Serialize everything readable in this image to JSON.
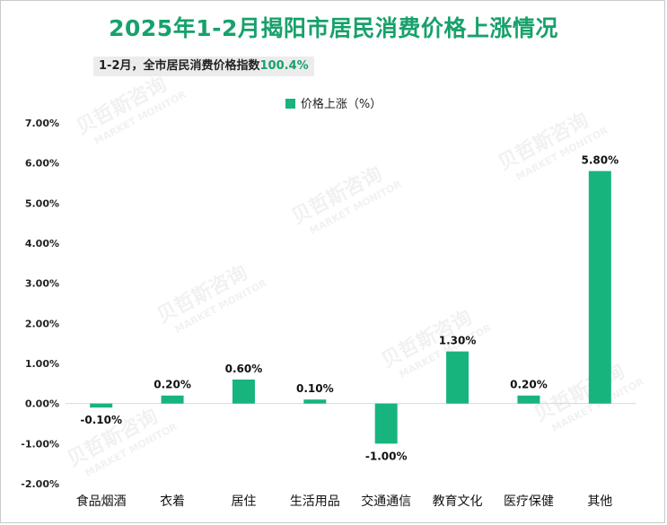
{
  "chart_data": {
    "type": "bar",
    "title": "2025年1-2月揭阳市居民消费价格上涨情况",
    "subtitle_prefix": "1-2月，全市居民消费价格指数",
    "subtitle_value": "100.4%",
    "legend": "价格上涨（%）",
    "categories": [
      "食品烟酒",
      "衣着",
      "居住",
      "生活用品",
      "交通通信",
      "教育文化",
      "医疗保健",
      "其他"
    ],
    "series": [
      {
        "name": "价格上涨（%）",
        "values": [
          -0.1,
          0.2,
          0.6,
          0.1,
          -1.0,
          1.3,
          0.2,
          5.8
        ]
      }
    ],
    "data_labels": [
      "-0.10%",
      "0.20%",
      "0.60%",
      "0.10%",
      "-1.00%",
      "1.30%",
      "0.20%",
      "5.80%"
    ],
    "yticks": [
      7.0,
      6.0,
      5.0,
      4.0,
      3.0,
      2.0,
      1.0,
      0.0,
      -1.0,
      -2.0
    ],
    "ytick_labels": [
      "7.00%",
      "6.00%",
      "5.00%",
      "4.00%",
      "3.00%",
      "2.00%",
      "1.00%",
      "0.00%",
      "-1.00%",
      "-2.00%"
    ],
    "ylim": [
      -2.0,
      7.0
    ],
    "grid": false,
    "legend_position": "top-center",
    "bar_color": "#17b47e",
    "title_color": "#17a16b"
  },
  "watermark": {
    "text": "贝哲斯咨询",
    "sub": "MARKET MONITOR"
  }
}
